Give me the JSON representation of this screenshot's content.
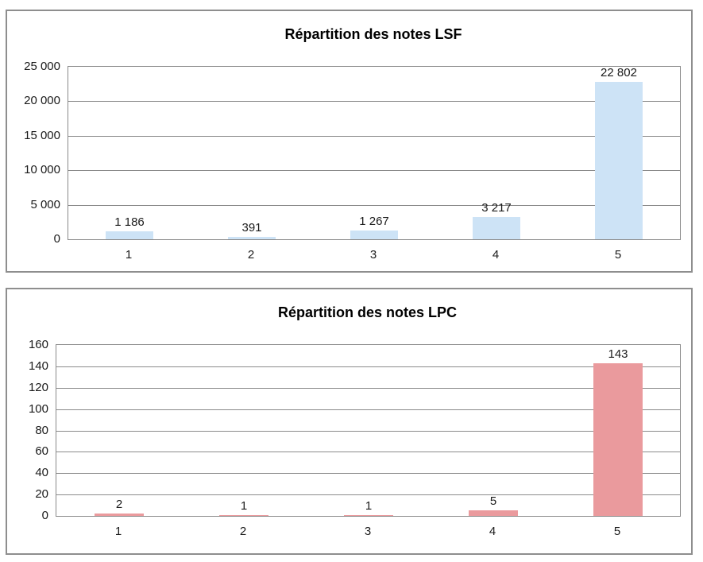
{
  "chart_data": [
    {
      "type": "bar",
      "title": "Répartition des notes LSF",
      "categories": [
        "1",
        "2",
        "3",
        "4",
        "5"
      ],
      "values": [
        1186,
        391,
        1267,
        3217,
        22802
      ],
      "data_labels": [
        "1 186",
        "391",
        "1 267",
        "3 217",
        "22 802"
      ],
      "y_ticks": [
        "25 000",
        "20 000",
        "15 000",
        "10 000",
        "5 000",
        "0"
      ],
      "ylim": [
        0,
        25000
      ],
      "ytick_step": 5000,
      "xlabel": "",
      "ylabel": "",
      "grid": true,
      "legend": "none",
      "bar_color": "#CDE3F6",
      "grid_color": "#8A8A8A",
      "title_color": "#000000",
      "text_color": "#1A1A1A"
    },
    {
      "type": "bar",
      "title": "Répartition des notes LPC",
      "categories": [
        "1",
        "2",
        "3",
        "4",
        "5"
      ],
      "values": [
        2,
        1,
        1,
        5,
        143
      ],
      "data_labels": [
        "2",
        "1",
        "1",
        "5",
        "143"
      ],
      "y_ticks": [
        "160",
        "140",
        "120",
        "100",
        "80",
        "60",
        "40",
        "20",
        "0"
      ],
      "ylim": [
        0,
        160
      ],
      "ytick_step": 20,
      "xlabel": "",
      "ylabel": "",
      "grid": true,
      "legend": "none",
      "bar_color": "#EA9A9D",
      "grid_color": "#8A8A8A",
      "title_color": "#000000",
      "text_color": "#1A1A1A"
    }
  ]
}
